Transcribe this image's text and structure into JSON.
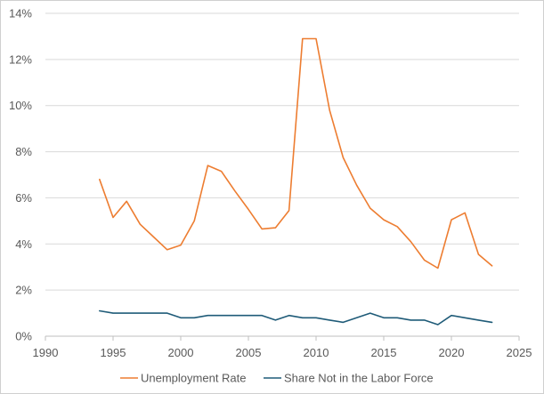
{
  "chart_data": {
    "type": "line",
    "title": "",
    "xlabel": "",
    "ylabel": "",
    "xlim": [
      1990,
      2025
    ],
    "ylim": [
      0,
      14
    ],
    "x_ticks": [
      "1990",
      "1995",
      "2000",
      "2005",
      "2010",
      "2015",
      "2020",
      "2025"
    ],
    "y_ticks": [
      "0%",
      "2%",
      "4%",
      "6%",
      "8%",
      "10%",
      "12%",
      "14%"
    ],
    "grid": "horizontal",
    "legend_position": "bottom",
    "series": [
      {
        "name": "Unemployment Rate",
        "color": "#ed7d31",
        "x": [
          1994,
          1995,
          1996,
          1997,
          1998,
          1999,
          2000,
          2001,
          2002,
          2003,
          2004,
          2005,
          2006,
          2007,
          2008,
          2009,
          2010,
          2011,
          2012,
          2013,
          2014,
          2015,
          2016,
          2017,
          2018,
          2019,
          2020,
          2021,
          2022,
          2023
        ],
        "values": [
          6.8,
          5.15,
          5.85,
          4.85,
          4.3,
          3.75,
          3.95,
          5.0,
          7.4,
          7.15,
          6.3,
          5.5,
          4.65,
          4.7,
          5.45,
          12.9,
          12.9,
          9.8,
          7.75,
          6.55,
          5.55,
          5.05,
          4.75,
          4.1,
          3.3,
          2.95,
          5.05,
          5.35,
          3.55,
          3.05
        ]
      },
      {
        "name": "Share Not in the Labor Force",
        "color": "#1f5b78",
        "x": [
          1994,
          1995,
          1996,
          1997,
          1998,
          1999,
          2000,
          2001,
          2002,
          2003,
          2004,
          2005,
          2006,
          2007,
          2008,
          2009,
          2010,
          2011,
          2012,
          2013,
          2014,
          2015,
          2016,
          2017,
          2018,
          2019,
          2020,
          2021,
          2022,
          2023
        ],
        "values": [
          1.1,
          1.0,
          1.0,
          1.0,
          1.0,
          1.0,
          0.8,
          0.8,
          0.9,
          0.9,
          0.9,
          0.9,
          0.9,
          0.7,
          0.9,
          0.8,
          0.8,
          0.7,
          0.6,
          0.8,
          1.0,
          0.8,
          0.8,
          0.7,
          0.7,
          0.5,
          0.9,
          0.8,
          0.7,
          0.6
        ]
      }
    ]
  }
}
